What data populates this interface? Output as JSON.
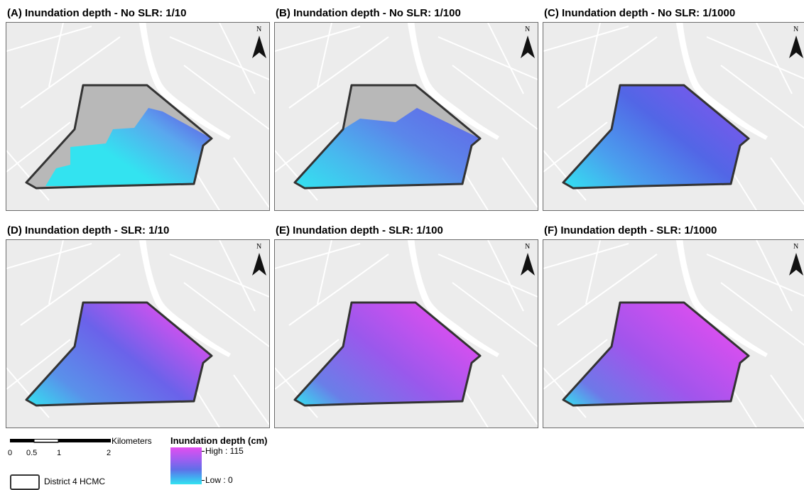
{
  "panels": [
    {
      "title": "(A) Inundation depth - No SLR: 1/10",
      "scenario": "a"
    },
    {
      "title": "(B) Inundation depth - No SLR: 1/100",
      "scenario": "b"
    },
    {
      "title": "(C) Inundation depth - No SLR: 1/1000",
      "scenario": "c"
    },
    {
      "title": "(D) Inundation depth - SLR: 1/10",
      "scenario": "d"
    },
    {
      "title": "(E) Inundation depth - SLR: 1/100",
      "scenario": "e"
    },
    {
      "title": "(F) Inundation depth - SLR: 1/1000",
      "scenario": "f"
    }
  ],
  "north_label": "N",
  "scalebar": {
    "ticks": [
      "0",
      "0.5",
      "1",
      "2"
    ],
    "unit": "Kilometers"
  },
  "legend": {
    "title": "Inundation depth (cm)",
    "high": "High : 115",
    "low": "Low : 0",
    "district_label": "District 4 HCMC"
  },
  "colors": {
    "low": "#33e3f0",
    "mid": "#5f6fe8",
    "high": "#e24ef0",
    "dry": "#b8b8b8",
    "background": "#ececec"
  }
}
